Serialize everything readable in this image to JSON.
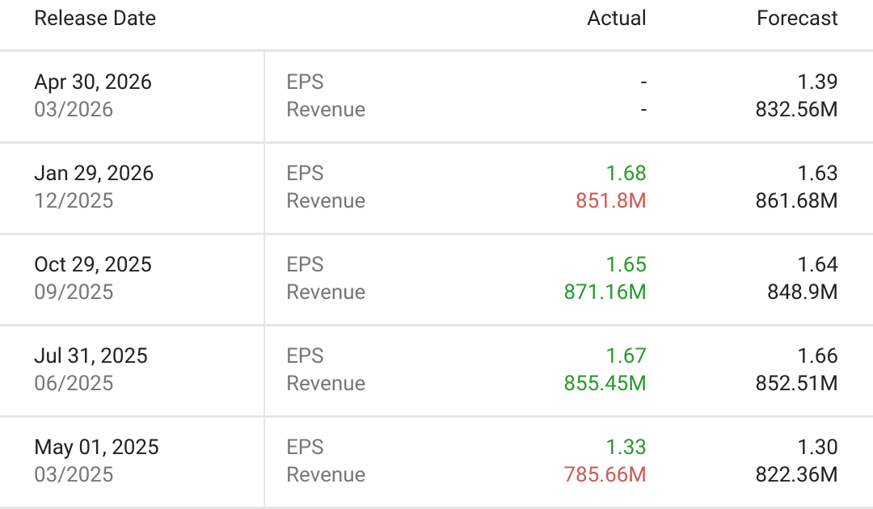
{
  "table": {
    "header": [
      "Release Date",
      "Actual",
      "Forecast"
    ],
    "metrics": [
      "EPS",
      "Revenue"
    ],
    "rows": [
      {
        "date": "Apr 30, 2026",
        "period": "03/2026",
        "actual": [
          "-",
          "-"
        ],
        "forecast": [
          "1.39",
          "832.56M"
        ],
        "actual_colors": [
          "#222222",
          "#222222"
        ]
      },
      {
        "date": "Jan 29, 2026",
        "period": "12/2025",
        "actual": [
          "1.68",
          "851.8M"
        ],
        "forecast": [
          "1.63",
          "861.68M"
        ],
        "actual_colors": [
          "#2a9a2a",
          "#cc5a55"
        ]
      },
      {
        "date": "Oct 29, 2025",
        "period": "09/2025",
        "actual": [
          "1.65",
          "871.16M"
        ],
        "forecast": [
          "1.64",
          "848.9M"
        ],
        "actual_colors": [
          "#2a9a2a",
          "#2a9a2a"
        ]
      },
      {
        "date": "Jul 31, 2025",
        "period": "06/2025",
        "actual": [
          "1.67",
          "855.45M"
        ],
        "forecast": [
          "1.66",
          "852.51M"
        ],
        "actual_colors": [
          "#2a9a2a",
          "#2a9a2a"
        ]
      },
      {
        "date": "May 01, 2025",
        "period": "03/2025",
        "actual": [
          "1.33",
          "785.66M"
        ],
        "forecast": [
          "1.30",
          "822.36M"
        ],
        "actual_colors": [
          "#2a9a2a",
          "#cc5a55"
        ]
      }
    ]
  }
}
